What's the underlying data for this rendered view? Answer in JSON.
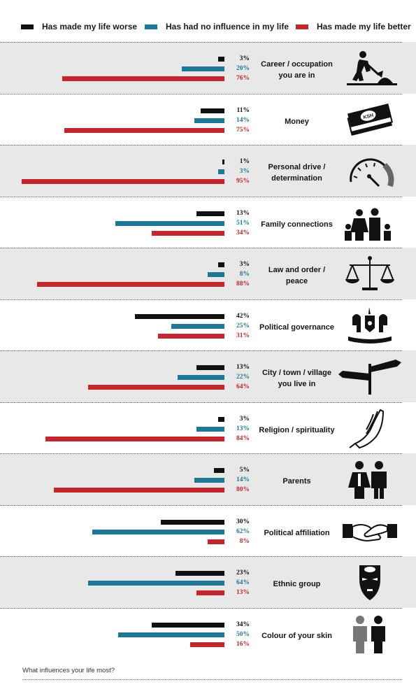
{
  "legend": [
    {
      "label": "Has made my life worse",
      "color": "#111111"
    },
    {
      "label": "Has had no influence in my life",
      "color": "#1f7796"
    },
    {
      "label": "Has made my life better",
      "color": "#c1272d"
    }
  ],
  "chart_data": {
    "type": "bar",
    "orientation": "horizontal",
    "xlim": [
      0,
      100
    ],
    "series_names": [
      "Has made my life worse",
      "Has had no influence in my life",
      "Has made my life better"
    ],
    "categories": [
      {
        "label_lines": [
          "Career / occupation",
          "you are in"
        ],
        "icon": "worker-digging-icon",
        "values": [
          3,
          20,
          76
        ],
        "labels": [
          "3%",
          "20%",
          "76%"
        ]
      },
      {
        "label_lines": [
          "Money"
        ],
        "icon": "money-banknotes-icon",
        "values": [
          11,
          14,
          75
        ],
        "labels": [
          "11%",
          "14%",
          "75%"
        ]
      },
      {
        "label_lines": [
          "Personal drive /",
          "determination"
        ],
        "icon": "speedometer-icon",
        "values": [
          1,
          3,
          95
        ],
        "labels": [
          "1%",
          "3%",
          "95%"
        ]
      },
      {
        "label_lines": [
          "Family connections"
        ],
        "icon": "family-icon",
        "values": [
          13,
          51,
          34
        ],
        "labels": [
          "13%",
          "51%",
          "34%"
        ]
      },
      {
        "label_lines": [
          "Law and order /",
          "peace"
        ],
        "icon": "scales-of-justice-icon",
        "values": [
          3,
          8,
          88
        ],
        "labels": [
          "3%",
          "8%",
          "88%"
        ]
      },
      {
        "label_lines": [
          "Political governance"
        ],
        "icon": "coat-of-arms-icon",
        "values": [
          42,
          25,
          31
        ],
        "labels": [
          "42%",
          "25%",
          "31%"
        ]
      },
      {
        "label_lines": [
          "City / town / village",
          "you live in"
        ],
        "icon": "signpost-icon",
        "values": [
          13,
          22,
          64
        ],
        "labels": [
          "13%",
          "22%",
          "64%"
        ]
      },
      {
        "label_lines": [
          "Religion / spirituality"
        ],
        "icon": "praying-hands-icon",
        "values": [
          3,
          13,
          84
        ],
        "labels": [
          "3%",
          "13%",
          "84%"
        ]
      },
      {
        "label_lines": [
          "Parents"
        ],
        "icon": "parents-icon",
        "values": [
          5,
          14,
          80
        ],
        "labels": [
          "5%",
          "14%",
          "80%"
        ]
      },
      {
        "label_lines": [
          "Political affiliation"
        ],
        "icon": "handshake-icon",
        "values": [
          30,
          62,
          8
        ],
        "labels": [
          "30%",
          "62%",
          "8%"
        ]
      },
      {
        "label_lines": [
          "Ethnic group"
        ],
        "icon": "tribal-mask-icon",
        "values": [
          23,
          64,
          13
        ],
        "labels": [
          "23%",
          "64%",
          "13%"
        ]
      },
      {
        "label_lines": [
          "Colour of your skin"
        ],
        "icon": "two-people-icon",
        "values": [
          34,
          50,
          16
        ],
        "labels": [
          "34%",
          "50%",
          "16%"
        ]
      }
    ]
  },
  "footer": {
    "text": "What influences your life most?"
  }
}
